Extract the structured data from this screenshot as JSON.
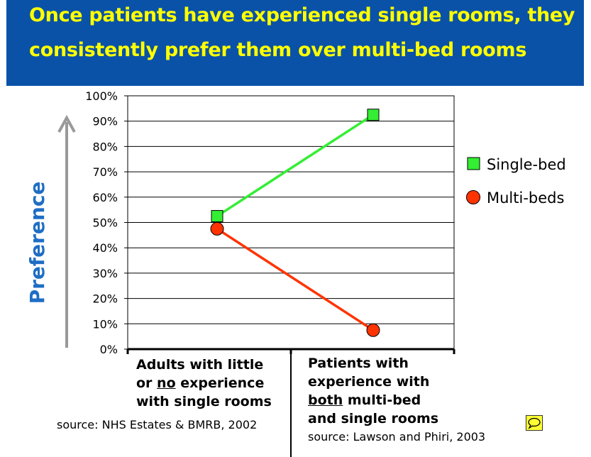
{
  "title": {
    "line1": "Once patients have experienced single rooms, they",
    "line2": "consistently prefer them over multi-bed rooms"
  },
  "colors": {
    "title_bg": "#0a52a8",
    "title_text": "#ffff00",
    "single_bed": "#33ee33",
    "multi_beds": "#ff3300",
    "preference_label": "#1f6ec4",
    "arrow": "#999999"
  },
  "chart_data": {
    "type": "line",
    "categories": [
      "Adults with little or no experience with single rooms",
      "Patients with experience with both multi-bed and single rooms"
    ],
    "series": [
      {
        "name": "Single-bed",
        "values": [
          52.5,
          92.5
        ],
        "marker": "square"
      },
      {
        "name": "Multi-beds",
        "values": [
          47.5,
          7.5
        ],
        "marker": "circle"
      }
    ],
    "ylabel": "Preference",
    "ylim": [
      0,
      100
    ],
    "yticks": [
      "0%",
      "10%",
      "20%",
      "30%",
      "40%",
      "50%",
      "60%",
      "70%",
      "80%",
      "90%",
      "100%"
    ],
    "grid": true,
    "legend_position": "right"
  },
  "category_labels": {
    "left": [
      "Adults with little",
      "or ",
      "no",
      " experience",
      "with single rooms"
    ],
    "right": [
      "Patients with",
      "experience with",
      "both",
      " multi-bed",
      "and single rooms"
    ]
  },
  "sources": {
    "left": "source: NHS Estates & BMRB, 2002",
    "right": "source: Lawson and Phiri, 2003"
  },
  "icons": {
    "comment": "comment-icon"
  }
}
